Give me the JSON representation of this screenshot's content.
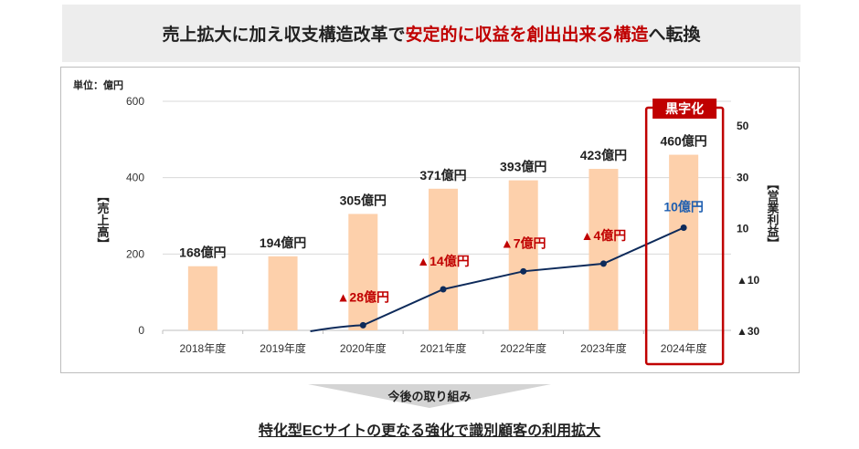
{
  "header": {
    "title_prefix": "売上拡大に加え収支構造改革で",
    "title_highlight": "安定的に収益を創出出来る構造",
    "title_suffix": "へ転換"
  },
  "chart_data": {
    "type": "bar+line",
    "unit_label": "単位：億円",
    "categories": [
      "2018年度",
      "2019年度",
      "2020年度",
      "2021年度",
      "2022年度",
      "2023年度",
      "2024年度"
    ],
    "series": [
      {
        "name": "【売上高】",
        "type": "bar",
        "axis": "left",
        "values": [
          168,
          194,
          305,
          371,
          393,
          423,
          460
        ],
        "labels": [
          "168億円",
          "194億円",
          "305億円",
          "371億円",
          "393億円",
          "423億円",
          "460億円"
        ],
        "color": "#fdd0ab"
      },
      {
        "name": "【営業利益】",
        "type": "line",
        "axis": "right",
        "values": [
          null,
          null,
          -28,
          -14,
          -7,
          -4,
          10
        ],
        "labels": [
          "",
          "",
          "▲28億円",
          "▲14億円",
          "▲7億円",
          "▲4億円",
          "10億円"
        ],
        "color": "#0d2a5a"
      }
    ],
    "left_axis": {
      "label": "【売上高】",
      "range": [
        0,
        600
      ],
      "ticks": [
        "0",
        "200",
        "400",
        "600"
      ],
      "tick_values": [
        0,
        200,
        400,
        600
      ]
    },
    "right_axis": {
      "label": "【営業利益】",
      "range": [
        -30,
        50
      ],
      "ticks": [
        "▲30",
        "▲10",
        "10",
        "30",
        "50"
      ],
      "tick_values": [
        -30,
        -10,
        10,
        30,
        50
      ]
    },
    "grid": true,
    "highlight": {
      "category": "2024年度",
      "label": "黒字化",
      "color": "#c00000"
    },
    "negative_label_color": "#c00000",
    "positive_label_color": "#1f5fb0"
  },
  "footer": {
    "arrow_label": "今後の取り組み",
    "conclusion": "特化型ECサイトの更なる強化で識別顧客の利用拡大"
  }
}
